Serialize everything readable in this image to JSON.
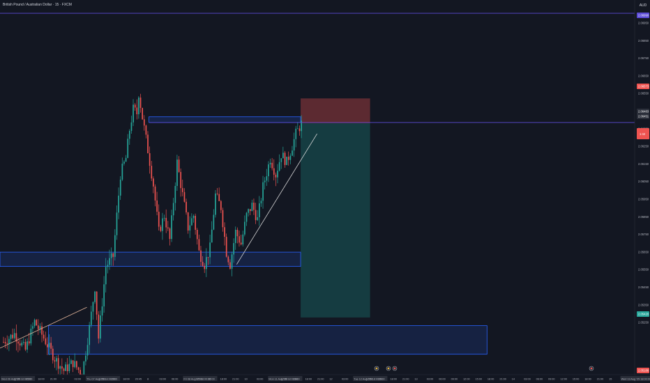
{
  "header": {
    "symbol_title": "British Pound / Australian Dollar · 15 · FXCM",
    "currency": "AUD"
  },
  "colors": {
    "background": "#131722",
    "up": "#26a69a",
    "down": "#ef5350",
    "zone": "#2962ff",
    "hline": "#5b4bd6",
    "stop_zone": "#5c2a31",
    "target_zone": "#153c41",
    "trend": "#d9d9d9",
    "trend_left": "#e6b89c"
  },
  "price_axis": {
    "labels": [
      "2.06950",
      "2.06850",
      "2.06750",
      "2.06650",
      "2.06550",
      "2.06450",
      "2.06350",
      "2.06250",
      "2.06150",
      "2.06050",
      "2.05950",
      "2.05850",
      "2.05750",
      "2.05650",
      "2.05550",
      "2.05450",
      "2.05350",
      "2.05250"
    ],
    "tags": [
      {
        "text": "2.06990",
        "bg": "#5b4bd6"
      },
      {
        "text": "2.06573",
        "bg": "#ef5350"
      },
      {
        "text": "2.06483",
        "bg": "#2a2e39"
      },
      {
        "text": "2.06451",
        "bg": "#2a2e39"
      },
      {
        "text": "2.05420",
        "bg": "#26a69a"
      },
      {
        "text": "2.05186",
        "bg": "#ef5350"
      }
    ],
    "countdown": "1:42"
  },
  "time_axis": {
    "labels": [
      "Wed 06 Aug '25 18:00:00",
      "12:00",
      "15:00",
      "18:00",
      "21:00",
      "7",
      "03:00",
      "Thu 07 Aug '25 18:00:00",
      "12:00",
      "15:00",
      "18:00",
      "20:45",
      "8",
      "03:00",
      "06:00",
      "Fri 08 Aug '25 18:00:00",
      "12:00",
      "15:00",
      "18:00",
      "21:00",
      "10",
      "03:00",
      "Mon 11 Aug '25 18:00:00",
      "12:00",
      "15:00",
      "18:00",
      "21:00",
      "12",
      "03:00",
      "Tue 12 Aug '25 18:00:00",
      "12:00",
      "15:00",
      "18:00",
      "21:00",
      "13",
      "03:00",
      "06:00",
      "09:00",
      "12:00",
      "15:00",
      "18:00",
      "21:00",
      "14",
      "03:00",
      "06:00",
      "09:00",
      "12:00",
      "15:00",
      "18:00",
      "21:00",
      "15",
      "Wed 13 Aug '25 18:00:00"
    ],
    "events": [
      "event-1",
      "event-2",
      "event-3",
      "event-4"
    ]
  },
  "chart_data": {
    "type": "candlestick",
    "title": "British Pound / Australian Dollar · 15 · FXCM",
    "ylim": [
      2.0522,
      2.0698
    ],
    "bar_count": 164,
    "key_prices": {
      "resistance_line": 2.0699,
      "short_entry": 2.06451,
      "short_stop": 2.06573,
      "short_target": 2.055,
      "upper_zone": [
        2.06455,
        2.06483
      ],
      "middle_zone": [
        2.0575,
        2.0582
      ],
      "lower_zone": [
        2.0532,
        2.0546
      ]
    },
    "pivots": [
      [
        0,
        2.0538
      ],
      [
        6,
        2.0542
      ],
      [
        12,
        2.0534
      ],
      [
        17,
        2.0548
      ],
      [
        22,
        2.054
      ],
      [
        28,
        2.053
      ],
      [
        33,
        2.0524
      ],
      [
        38,
        2.0528
      ],
      [
        43,
        2.0522
      ],
      [
        47,
        2.0545
      ],
      [
        50,
        2.0565
      ],
      [
        52,
        2.054
      ],
      [
        56,
        2.0575
      ],
      [
        60,
        2.058
      ],
      [
        64,
        2.062
      ],
      [
        67,
        2.0628
      ],
      [
        69,
        2.0642
      ],
      [
        71,
        2.0652
      ],
      [
        73,
        2.065
      ],
      [
        74,
        2.066
      ],
      [
        76,
        2.0648
      ],
      [
        79,
        2.0632
      ],
      [
        82,
        2.0615
      ],
      [
        85,
        2.0592
      ],
      [
        88,
        2.06
      ],
      [
        91,
        2.0588
      ],
      [
        95,
        2.0626
      ],
      [
        98,
        2.061
      ],
      [
        101,
        2.0594
      ],
      [
        104,
        2.06
      ],
      [
        107,
        2.0582
      ],
      [
        110,
        2.0576
      ],
      [
        113,
        2.0584
      ],
      [
        116,
        2.061
      ],
      [
        119,
        2.0604
      ],
      [
        122,
        2.0582
      ],
      [
        124,
        2.0576
      ],
      [
        127,
        2.0592
      ],
      [
        130,
        2.0586
      ],
      [
        133,
        2.06
      ],
      [
        136,
        2.0605
      ],
      [
        139,
        2.0598
      ],
      [
        142,
        2.0614
      ],
      [
        146,
        2.0628
      ],
      [
        149,
        2.062
      ],
      [
        152,
        2.063
      ],
      [
        155,
        2.0626
      ],
      [
        158,
        2.0634
      ],
      [
        160,
        2.064
      ],
      [
        163,
        2.0645
      ]
    ]
  }
}
